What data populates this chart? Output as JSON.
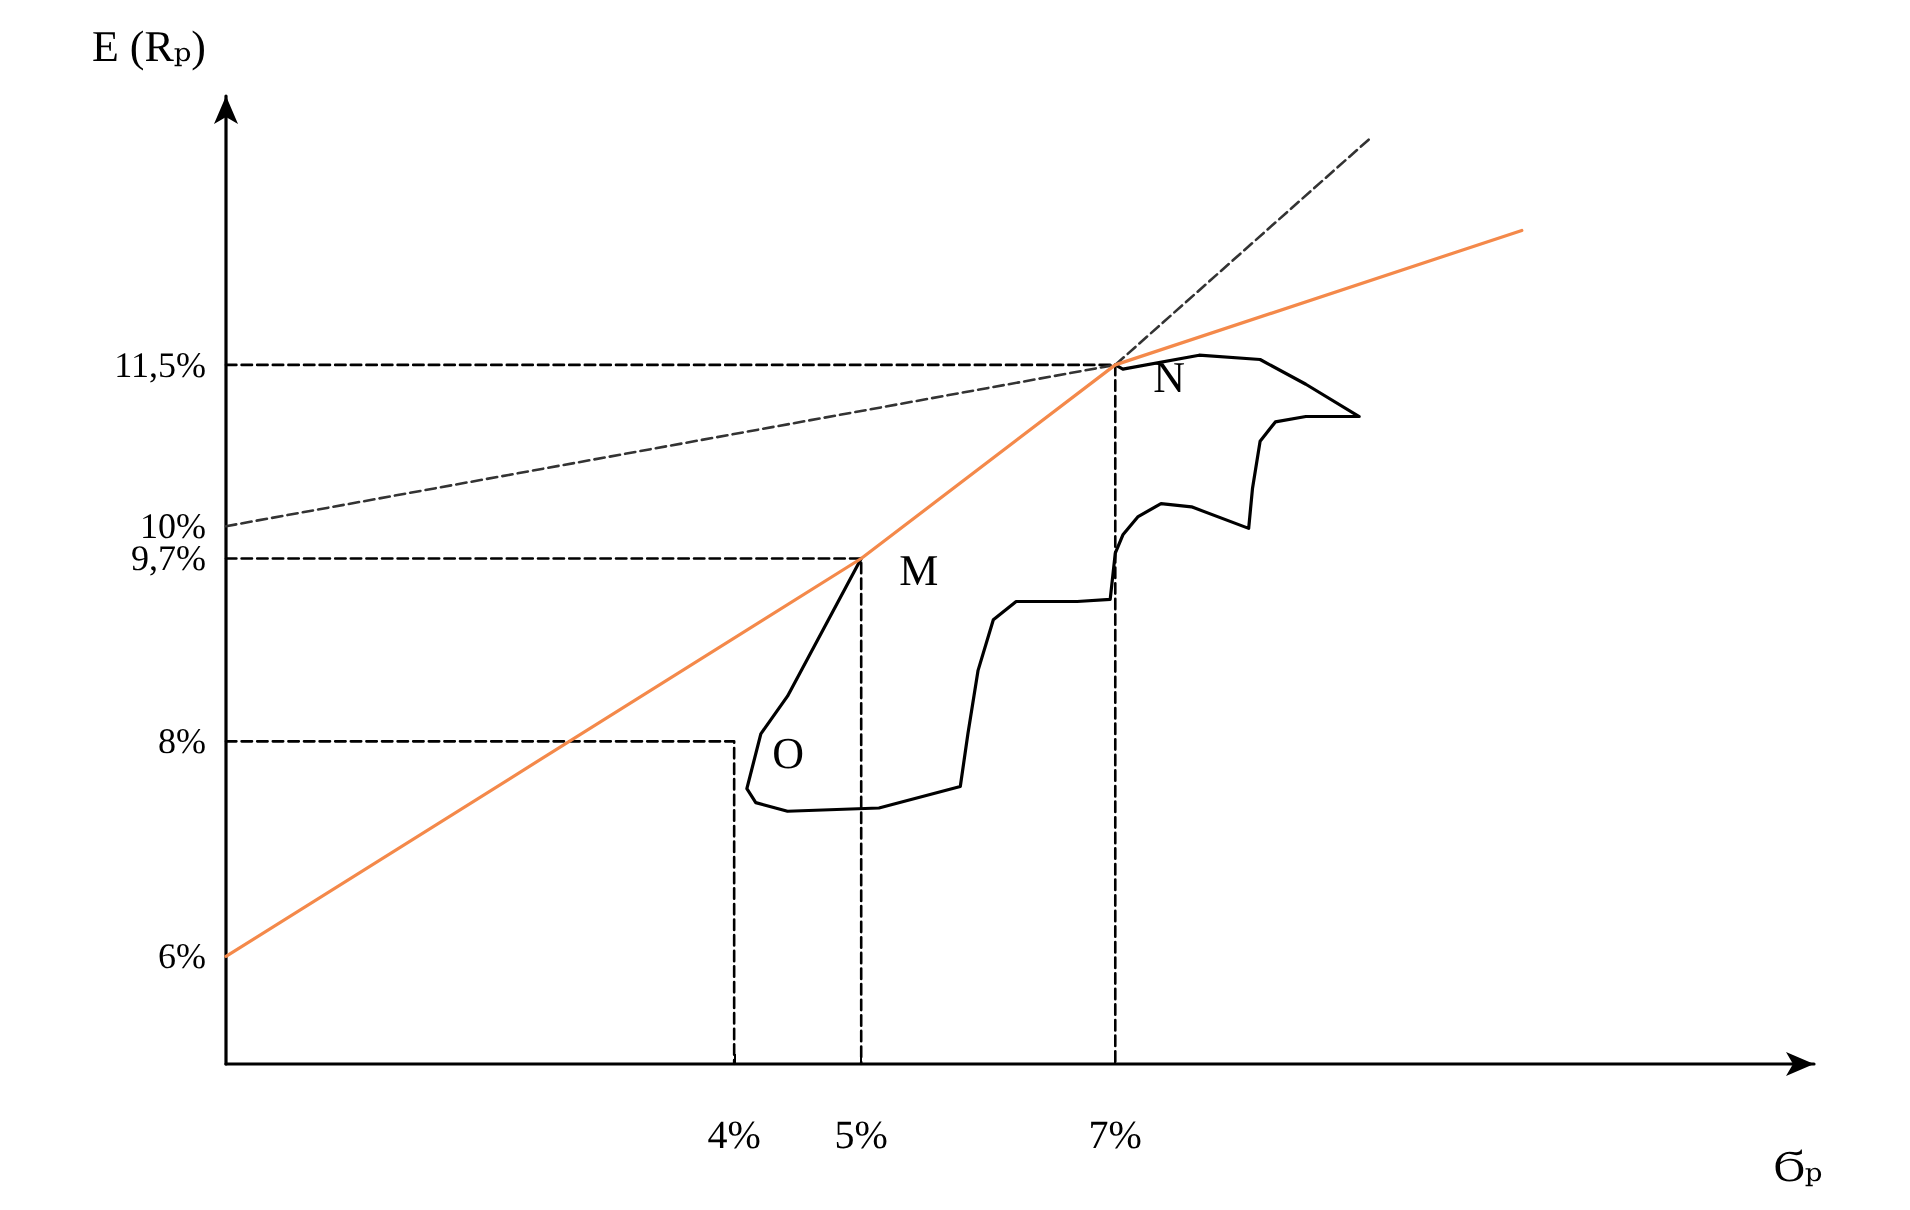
{
  "chart_data": {
    "type": "line",
    "xlabel": "Ϭₚ",
    "ylabel": "E (Rₚ)",
    "xlim": [
      0,
      12.5
    ],
    "xticks": [
      {
        "value": 4,
        "label": "4%"
      },
      {
        "value": 5,
        "label": "5%"
      },
      {
        "value": 7,
        "label": "7%"
      }
    ],
    "ylim": [
      5,
      14
    ],
    "yticks": [
      {
        "value": 6,
        "label": "6%"
      },
      {
        "value": 8,
        "label": "8%"
      },
      {
        "value": 9.7,
        "label": "9,7%"
      },
      {
        "value": 10,
        "label": "10%"
      },
      {
        "value": 11.5,
        "label": "11,5%"
      }
    ],
    "grid": false,
    "marker": "none",
    "line_style": "solid",
    "series": [
      {
        "color": "#000000",
        "line_style": "dashed",
        "x": [
          0,
          7,
          7
        ],
        "values": [
          11.5,
          11.5,
          5
        ]
      },
      {
        "color": "#000000",
        "line_style": "dashed",
        "x": [
          0,
          5,
          5
        ],
        "values": [
          9.7,
          9.7,
          5
        ]
      },
      {
        "color": "#000000",
        "line_style": "dashed",
        "x": [
          0,
          4,
          4
        ],
        "values": [
          8,
          8,
          5
        ]
      },
      {
        "color": "#333333",
        "line_style": "dashed",
        "x": [
          0,
          7,
          9.0
        ],
        "values": [
          10,
          11.5,
          13.6
        ]
      },
      {
        "color": "#000000",
        "x": [
          5,
          4.42,
          4.21,
          4.1,
          4.17,
          4.42,
          5.14,
          5.78,
          5.84,
          5.92,
          6.04,
          6.22,
          6.7,
          6.96,
          7.0,
          7.06,
          7.18,
          7.36,
          7.6,
          8.05,
          8.08,
          8.14,
          8.26,
          8.5,
          8.92,
          8.5,
          8.14,
          7.66,
          7.06,
          7
        ],
        "values": [
          9.7,
          8.42,
          8.07,
          7.56,
          7.43,
          7.35,
          7.38,
          7.58,
          8.07,
          8.66,
          9.13,
          9.3,
          9.3,
          9.32,
          9.75,
          9.92,
          10.09,
          10.21,
          10.18,
          9.98,
          10.35,
          10.79,
          10.97,
          11.02,
          11.02,
          11.32,
          11.55,
          11.59,
          11.46,
          11.5
        ]
      },
      {
        "color": "#f4894a",
        "x": [
          0,
          5,
          7,
          10.2
        ],
        "values": [
          6,
          9.7,
          11.5,
          12.75
        ]
      }
    ],
    "annotations": [
      {
        "text": "O",
        "x": 4,
        "y": 8
      },
      {
        "text": "M",
        "x": 5,
        "y": 9.7
      },
      {
        "text": "N",
        "x": 7,
        "y": 11.5
      }
    ]
  }
}
